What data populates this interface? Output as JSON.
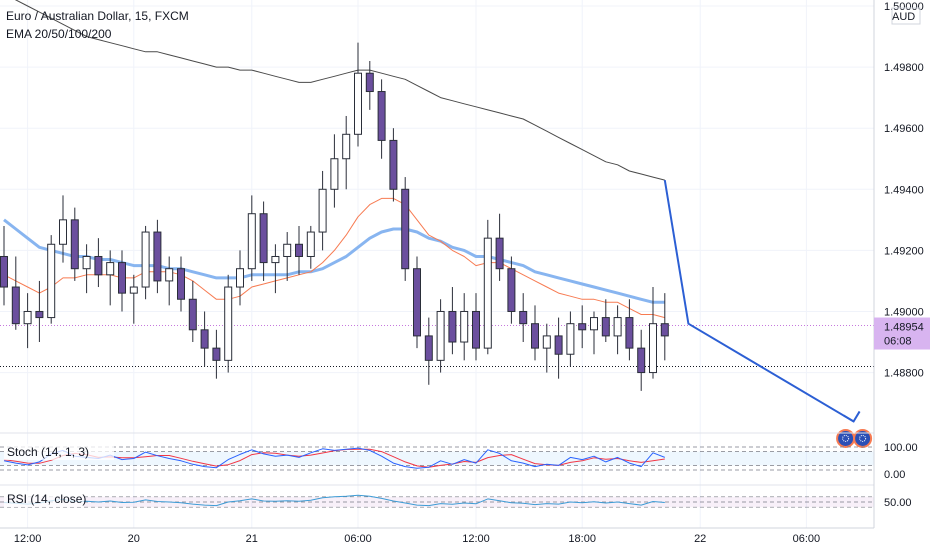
{
  "header": {
    "symbol_title": "Euro / Australian Dollar, 15, FXCM",
    "indicator_label": "EMA 20/50/100/200"
  },
  "price_axis": {
    "currency": "AUD",
    "ticks": [
      1.5,
      1.498,
      1.496,
      1.494,
      1.492,
      1.49,
      1.488
    ],
    "tick_labels": [
      "1.50000",
      "1.49800",
      "1.49600",
      "1.49400",
      "1.49200",
      "1.49000",
      "1.48800"
    ],
    "current_price": "1.48954",
    "countdown": "06:08",
    "current_price_value": 1.48954,
    "support_level": 1.4882
  },
  "time_axis": {
    "labels": [
      "12:00",
      "20",
      "21",
      "06:00",
      "12:00",
      "18:00",
      "22",
      "06:00"
    ],
    "label_bars": [
      2,
      11,
      21,
      30,
      40,
      49,
      59,
      68
    ]
  },
  "stoch": {
    "label": "Stoch (14, 1, 3)",
    "levels": [
      "100.00",
      "0.00"
    ],
    "band": [
      20,
      80
    ]
  },
  "rsi": {
    "label": "RSI (14, close)",
    "levels": [
      "50.00"
    ],
    "band": [
      30,
      70
    ]
  },
  "colors": {
    "bull": "#ffffff",
    "bear": "#6b4f9e",
    "wick": "#2a2e39",
    "ema_fast": "#f77b52",
    "ema_mid": "#88b5f0",
    "ema_slow": "#4a4a4a",
    "projection": "#2c5fd4",
    "price_tag": "#d8b4f0",
    "stoch_k": "#2962ff",
    "stoch_d": "#f23645",
    "rsi_line": "#3d9bd4"
  },
  "chart_data": {
    "type": "candlestick",
    "timeframe": "15",
    "ohlc": [
      [
        1.4918,
        1.4928,
        1.4902,
        1.4908
      ],
      [
        1.4908,
        1.4918,
        1.4894,
        1.4896
      ],
      [
        1.4896,
        1.4906,
        1.4888,
        1.49
      ],
      [
        1.49,
        1.491,
        1.489,
        1.4898
      ],
      [
        1.4898,
        1.4925,
        1.4896,
        1.4922
      ],
      [
        1.4922,
        1.4938,
        1.4916,
        1.493
      ],
      [
        1.493,
        1.4934,
        1.491,
        1.4914
      ],
      [
        1.4914,
        1.4922,
        1.4906,
        1.4918
      ],
      [
        1.4918,
        1.4924,
        1.4908,
        1.4912
      ],
      [
        1.4912,
        1.492,
        1.4902,
        1.4916
      ],
      [
        1.4916,
        1.492,
        1.49,
        1.4906
      ],
      [
        1.4906,
        1.4912,
        1.4896,
        1.4908
      ],
      [
        1.4908,
        1.4928,
        1.4904,
        1.4926
      ],
      [
        1.4926,
        1.493,
        1.4906,
        1.491
      ],
      [
        1.491,
        1.4918,
        1.4902,
        1.4914
      ],
      [
        1.4914,
        1.4918,
        1.49,
        1.4904
      ],
      [
        1.4904,
        1.491,
        1.489,
        1.4894
      ],
      [
        1.4894,
        1.49,
        1.4882,
        1.4888
      ],
      [
        1.4888,
        1.4894,
        1.4878,
        1.4884
      ],
      [
        1.4884,
        1.4912,
        1.488,
        1.4908
      ],
      [
        1.4908,
        1.492,
        1.4902,
        1.4914
      ],
      [
        1.4914,
        1.4938,
        1.491,
        1.4932
      ],
      [
        1.4932,
        1.4936,
        1.491,
        1.4916
      ],
      [
        1.4916,
        1.4922,
        1.4906,
        1.4918
      ],
      [
        1.4918,
        1.4926,
        1.491,
        1.4922
      ],
      [
        1.4922,
        1.4928,
        1.4912,
        1.4918
      ],
      [
        1.4918,
        1.4928,
        1.4914,
        1.4926
      ],
      [
        1.4926,
        1.4946,
        1.492,
        1.494
      ],
      [
        1.494,
        1.4958,
        1.4934,
        1.495
      ],
      [
        1.495,
        1.4964,
        1.494,
        1.4958
      ],
      [
        1.4958,
        1.4988,
        1.4954,
        1.4978
      ],
      [
        1.4978,
        1.4982,
        1.4966,
        1.4972
      ],
      [
        1.4972,
        1.4976,
        1.495,
        1.4956
      ],
      [
        1.4956,
        1.496,
        1.4936,
        1.494
      ],
      [
        1.494,
        1.4944,
        1.491,
        1.4914
      ],
      [
        1.4914,
        1.4918,
        1.4888,
        1.4892
      ],
      [
        1.4892,
        1.4898,
        1.4876,
        1.4884
      ],
      [
        1.4884,
        1.4904,
        1.488,
        1.49
      ],
      [
        1.49,
        1.4908,
        1.4886,
        1.489
      ],
      [
        1.489,
        1.4906,
        1.4884,
        1.49
      ],
      [
        1.49,
        1.4906,
        1.4884,
        1.4888
      ],
      [
        1.4888,
        1.493,
        1.4886,
        1.4924
      ],
      [
        1.4924,
        1.4932,
        1.491,
        1.4914
      ],
      [
        1.4914,
        1.4918,
        1.4896,
        1.49
      ],
      [
        1.49,
        1.4906,
        1.489,
        1.4896
      ],
      [
        1.4896,
        1.4902,
        1.4884,
        1.4888
      ],
      [
        1.4888,
        1.4896,
        1.488,
        1.4892
      ],
      [
        1.4892,
        1.4898,
        1.4878,
        1.4886
      ],
      [
        1.4886,
        1.49,
        1.4882,
        1.4896
      ],
      [
        1.4896,
        1.4902,
        1.4888,
        1.4894
      ],
      [
        1.4894,
        1.49,
        1.4886,
        1.4898
      ],
      [
        1.4898,
        1.4904,
        1.489,
        1.4892
      ],
      [
        1.4892,
        1.4902,
        1.4886,
        1.4898
      ],
      [
        1.4898,
        1.4904,
        1.4884,
        1.4888
      ],
      [
        1.4888,
        1.4894,
        1.4874,
        1.488
      ],
      [
        1.488,
        1.4908,
        1.4878,
        1.4896
      ],
      [
        1.4896,
        1.4906,
        1.4884,
        1.4892
      ]
    ],
    "ema_fast": [
      1.4912,
      1.491,
      1.4908,
      1.4906,
      1.4908,
      1.4911,
      1.4911,
      1.4912,
      1.4912,
      1.4912,
      1.4911,
      1.4911,
      1.4913,
      1.4913,
      1.4913,
      1.4912,
      1.491,
      1.4907,
      1.4904,
      1.4904,
      1.4905,
      1.4908,
      1.4909,
      1.491,
      1.4911,
      1.4912,
      1.4913,
      1.4916,
      1.492,
      1.4925,
      1.4931,
      1.4935,
      1.4937,
      1.4937,
      1.4935,
      1.493,
      1.4925,
      1.4923,
      1.492,
      1.4918,
      1.4915,
      1.4916,
      1.4916,
      1.4914,
      1.4912,
      1.491,
      1.4908,
      1.4906,
      1.4905,
      1.4904,
      1.4904,
      1.4903,
      1.4903,
      1.4901,
      1.4899,
      1.4899,
      1.4898
    ],
    "ema_mid": [
      1.493,
      1.4927,
      1.4924,
      1.4921,
      1.492,
      1.4919,
      1.4918,
      1.4918,
      1.4917,
      1.4917,
      1.4916,
      1.4915,
      1.4915,
      1.4915,
      1.4914,
      1.4914,
      1.4913,
      1.4912,
      1.4911,
      1.4911,
      1.4911,
      1.4912,
      1.4912,
      1.4912,
      1.4912,
      1.4913,
      1.4913,
      1.4914,
      1.4916,
      1.4918,
      1.4921,
      1.4924,
      1.4926,
      1.4927,
      1.4927,
      1.4926,
      1.4924,
      1.4923,
      1.4921,
      1.492,
      1.4918,
      1.4918,
      1.4917,
      1.4916,
      1.4915,
      1.4913,
      1.4912,
      1.4911,
      1.491,
      1.4909,
      1.4908,
      1.4907,
      1.4906,
      1.4905,
      1.4904,
      1.4903,
      1.4903
    ],
    "ema_slow": [
      1.5004,
      1.5002,
      1.5,
      1.4998,
      1.4996,
      1.4994,
      1.4992,
      1.499,
      1.4989,
      1.4988,
      1.4987,
      1.4986,
      1.4985,
      1.4985,
      1.4984,
      1.4983,
      1.4982,
      1.4981,
      1.498,
      1.498,
      1.4979,
      1.4979,
      1.4978,
      1.4977,
      1.4976,
      1.4975,
      1.4975,
      1.4976,
      1.4977,
      1.4978,
      1.4979,
      1.4979,
      1.4978,
      1.4977,
      1.4976,
      1.4974,
      1.4972,
      1.497,
      1.4969,
      1.4968,
      1.4967,
      1.4966,
      1.4965,
      1.4964,
      1.4963,
      1.4961,
      1.4959,
      1.4957,
      1.4955,
      1.4953,
      1.4951,
      1.4949,
      1.4948,
      1.4946,
      1.4945,
      1.4944,
      1.4943
    ],
    "projection_path": [
      [
        56,
        1.4943
      ],
      [
        58,
        1.4896
      ],
      [
        72,
        1.4864
      ]
    ],
    "stoch_k": [
      40,
      30,
      22,
      35,
      70,
      85,
      60,
      55,
      50,
      65,
      45,
      50,
      78,
      62,
      50,
      40,
      25,
      15,
      10,
      45,
      68,
      88,
      70,
      60,
      65,
      55,
      75,
      92,
      85,
      90,
      95,
      85,
      60,
      30,
      15,
      8,
      12,
      40,
      25,
      45,
      30,
      88,
      72,
      40,
      30,
      15,
      25,
      20,
      55,
      45,
      60,
      35,
      55,
      30,
      15,
      75,
      55
    ],
    "stoch_d": [
      45,
      38,
      30,
      29,
      42,
      63,
      72,
      67,
      55,
      57,
      53,
      53,
      58,
      63,
      63,
      51,
      38,
      27,
      17,
      23,
      41,
      67,
      75,
      73,
      65,
      60,
      65,
      74,
      84,
      89,
      90,
      90,
      80,
      58,
      35,
      18,
      12,
      20,
      26,
      37,
      33,
      54,
      63,
      67,
      47,
      28,
      23,
      20,
      33,
      40,
      53,
      47,
      50,
      40,
      33,
      40,
      48
    ],
    "rsi": [
      48,
      45,
      42,
      46,
      55,
      60,
      52,
      53,
      50,
      54,
      48,
      49,
      58,
      52,
      50,
      47,
      42,
      38,
      36,
      50,
      55,
      62,
      54,
      53,
      55,
      53,
      57,
      66,
      70,
      72,
      76,
      72,
      64,
      54,
      46,
      38,
      36,
      44,
      41,
      46,
      43,
      62,
      55,
      47,
      45,
      40,
      44,
      42,
      50,
      47,
      51,
      46,
      50,
      44,
      38,
      52,
      48
    ]
  }
}
